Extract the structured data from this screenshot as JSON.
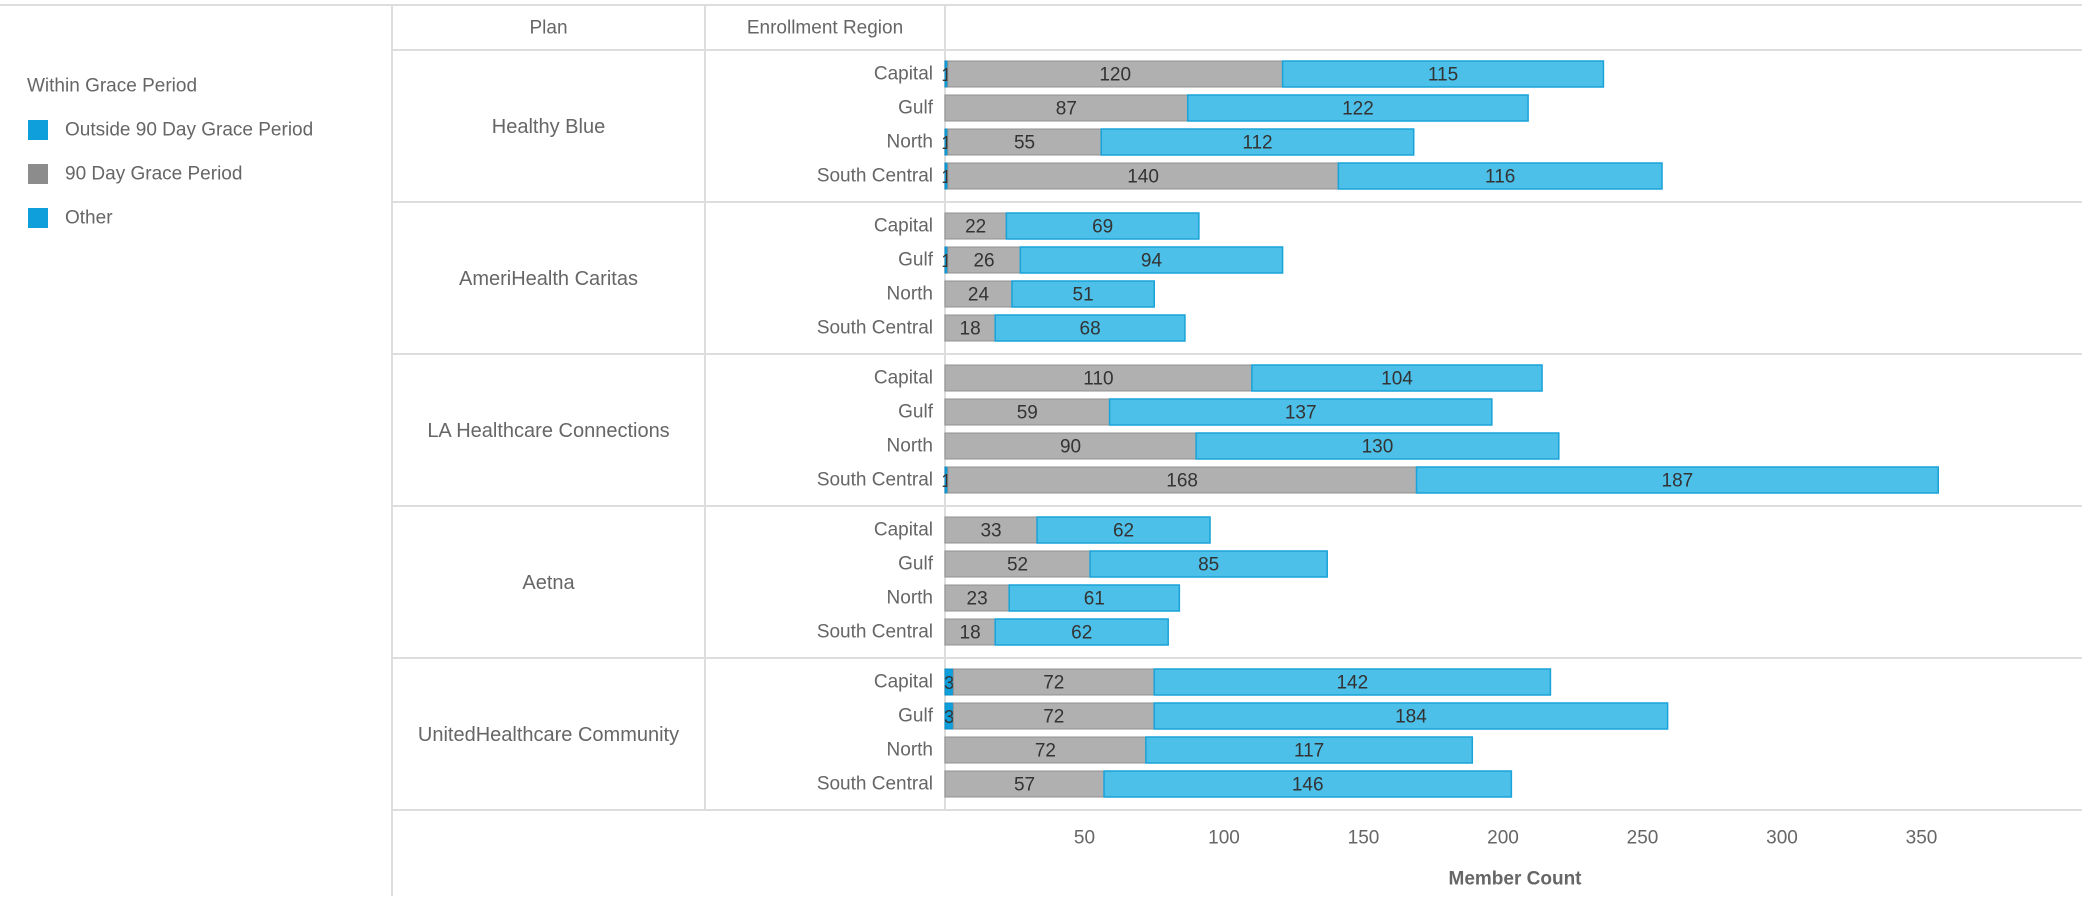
{
  "legend": {
    "title": "Within Grace Period",
    "items": [
      {
        "label": "Outside 90 Day Grace Period",
        "color": "#0fa0dc"
      },
      {
        "label": "90 Day Grace Period",
        "color": "#8c8c8c"
      },
      {
        "label": "Other",
        "color": "#0fa0dc"
      }
    ]
  },
  "chart_data": {
    "type": "bar",
    "orientation": "horizontal",
    "stacked": true,
    "column_headers": {
      "plan": "Plan",
      "region": "Enrollment Region"
    },
    "xlabel": "Member Count",
    "xlim": [
      0,
      400
    ],
    "x_ticks": [
      50,
      100,
      150,
      200,
      250,
      300,
      350
    ],
    "series_colors": {
      "other": "#0fa0dc",
      "grace": "#b0b0b0",
      "outside": "#4cc0e8"
    },
    "groups": [
      {
        "plan": "Healthy Blue",
        "rows": [
          {
            "region": "Capital",
            "other": 1,
            "grace": 120,
            "outside": 115
          },
          {
            "region": "Gulf",
            "other": 0,
            "grace": 87,
            "outside": 122
          },
          {
            "region": "North",
            "other": 1,
            "grace": 55,
            "outside": 112
          },
          {
            "region": "South Central",
            "other": 1,
            "grace": 140,
            "outside": 116
          }
        ]
      },
      {
        "plan": "AmeriHealth Caritas",
        "rows": [
          {
            "region": "Capital",
            "other": 0,
            "grace": 22,
            "outside": 69
          },
          {
            "region": "Gulf",
            "other": 1,
            "grace": 26,
            "outside": 94
          },
          {
            "region": "North",
            "other": 0,
            "grace": 24,
            "outside": 51
          },
          {
            "region": "South Central",
            "other": 0,
            "grace": 18,
            "outside": 68
          }
        ]
      },
      {
        "plan": "LA Healthcare Connections",
        "rows": [
          {
            "region": "Capital",
            "other": 0,
            "grace": 110,
            "outside": 104
          },
          {
            "region": "Gulf",
            "other": 0,
            "grace": 59,
            "outside": 137
          },
          {
            "region": "North",
            "other": 0,
            "grace": 90,
            "outside": 130
          },
          {
            "region": "South Central",
            "other": 1,
            "grace": 168,
            "outside": 187
          }
        ]
      },
      {
        "plan": "Aetna",
        "rows": [
          {
            "region": "Capital",
            "other": 0,
            "grace": 33,
            "outside": 62
          },
          {
            "region": "Gulf",
            "other": 0,
            "grace": 52,
            "outside": 85
          },
          {
            "region": "North",
            "other": 0,
            "grace": 23,
            "outside": 61
          },
          {
            "region": "South Central",
            "other": 0,
            "grace": 18,
            "outside": 62
          }
        ]
      },
      {
        "plan": "UnitedHealthcare Community",
        "rows": [
          {
            "region": "Capital",
            "other": 3,
            "grace": 72,
            "outside": 142
          },
          {
            "region": "Gulf",
            "other": 3,
            "grace": 72,
            "outside": 184
          },
          {
            "region": "North",
            "other": 0,
            "grace": 72,
            "outside": 117
          },
          {
            "region": "South Central",
            "other": 0,
            "grace": 57,
            "outside": 146
          }
        ]
      }
    ]
  }
}
